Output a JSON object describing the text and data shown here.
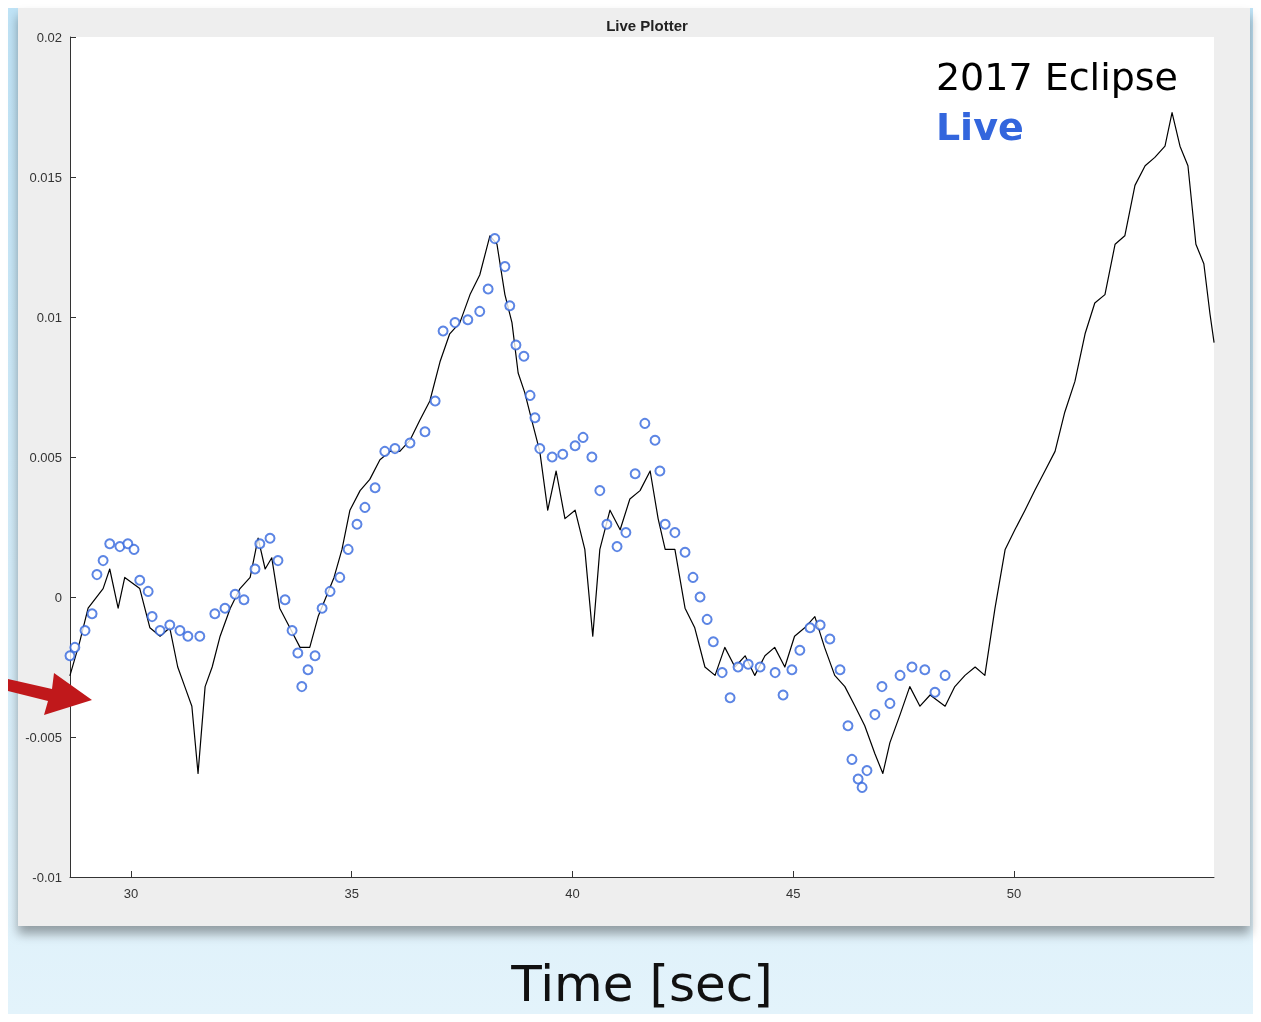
{
  "chart_data": {
    "type": "line",
    "title": "Live Plotter",
    "xlabel": "Time [sec]",
    "xlim": [
      28.62,
      54.53
    ],
    "xticks": [
      30,
      35,
      40,
      45,
      50
    ],
    "ylim": [
      -0.01,
      0.02
    ],
    "yticks": [
      -0.01,
      -0.005,
      0,
      0.005,
      0.01,
      0.015,
      0.02
    ],
    "grid": false,
    "legend": "top right",
    "series": [
      {
        "name": "2017 Eclipse",
        "type": "line",
        "marker": "none",
        "line_style": "solid",
        "color": "#000000",
        "x": [
          28.62,
          28.84,
          29.03,
          29.37,
          29.52,
          29.71,
          29.86,
          30.2,
          30.43,
          30.66,
          30.88,
          31.06,
          31.22,
          31.38,
          31.52,
          31.68,
          31.84,
          32.02,
          32.25,
          32.47,
          32.7,
          32.88,
          33.04,
          33.19,
          33.37,
          33.6,
          33.83,
          34.05,
          34.24,
          34.42,
          34.6,
          34.78,
          34.96,
          35.19,
          35.41,
          35.64,
          35.87,
          36.09,
          36.32,
          36.54,
          36.77,
          37.0,
          37.22,
          37.45,
          37.68,
          37.9,
          38.13,
          38.29,
          38.47,
          38.63,
          38.77,
          38.92,
          39.08,
          39.26,
          39.44,
          39.63,
          39.83,
          40.06,
          40.28,
          40.46,
          40.62,
          40.85,
          41.08,
          41.3,
          41.53,
          41.76,
          41.94,
          42.1,
          42.32,
          42.55,
          42.77,
          43.0,
          43.23,
          43.45,
          43.68,
          43.91,
          44.13,
          44.36,
          44.58,
          44.81,
          45.03,
          45.26,
          45.49,
          45.71,
          45.94,
          46.17,
          46.4,
          46.62,
          46.85,
          47.03,
          47.19,
          47.42,
          47.64,
          47.87,
          48.1,
          48.44,
          48.66,
          48.89,
          49.12,
          49.34,
          49.57,
          49.8,
          50.02,
          50.25,
          50.47,
          50.7,
          50.93,
          51.15,
          51.38,
          51.61,
          51.83,
          52.06,
          52.29,
          52.51,
          52.74,
          52.97,
          53.19,
          53.42,
          53.58,
          53.76,
          53.94,
          54.12,
          54.3,
          54.44,
          54.53
        ],
        "values": [
          -0.0028,
          -0.0016,
          -0.0004,
          0.0003,
          0.001,
          -0.0004,
          0.0007,
          0.0003,
          -0.0011,
          -0.0014,
          -0.0011,
          -0.0025,
          -0.0032,
          -0.0039,
          -0.0063,
          -0.0032,
          -0.0025,
          -0.0014,
          -0.0004,
          0.0003,
          0.0007,
          0.0021,
          0.001,
          0.0014,
          -0.0004,
          -0.0011,
          -0.0018,
          -0.0018,
          -0.0007,
          0.0,
          0.0007,
          0.0017,
          0.0031,
          0.0038,
          0.0042,
          0.0049,
          0.0052,
          0.0052,
          0.0056,
          0.0063,
          0.007,
          0.0084,
          0.0094,
          0.0098,
          0.0108,
          0.0115,
          0.0129,
          0.0126,
          0.0108,
          0.0098,
          0.008,
          0.0073,
          0.0063,
          0.0052,
          0.0031,
          0.0045,
          0.0028,
          0.0031,
          0.0017,
          -0.0014,
          0.0017,
          0.0031,
          0.0024,
          0.0035,
          0.0038,
          0.0045,
          0.0028,
          0.0017,
          0.0017,
          -0.0004,
          -0.0011,
          -0.0025,
          -0.0028,
          -0.0018,
          -0.0025,
          -0.0021,
          -0.0028,
          -0.0021,
          -0.0018,
          -0.0025,
          -0.0014,
          -0.0011,
          -0.0007,
          -0.0018,
          -0.0028,
          -0.0032,
          -0.0039,
          -0.0046,
          -0.0056,
          -0.0063,
          -0.0052,
          -0.0042,
          -0.0032,
          -0.0039,
          -0.0035,
          -0.0039,
          -0.0032,
          -0.0028,
          -0.0025,
          -0.0028,
          -0.0004,
          0.0017,
          0.0024,
          0.0031,
          0.0038,
          0.0045,
          0.0052,
          0.0066,
          0.0077,
          0.0094,
          0.0105,
          0.0108,
          0.0126,
          0.0129,
          0.0147,
          0.0154,
          0.0157,
          0.0161,
          0.0173,
          0.0161,
          0.0154,
          0.0126,
          0.0119,
          0.0101,
          0.0091
        ]
      },
      {
        "name": "Live",
        "type": "scatter",
        "marker": "circle",
        "color": "#3366dd",
        "x": [
          28.62,
          28.73,
          28.96,
          29.12,
          29.23,
          29.37,
          29.52,
          29.75,
          29.93,
          30.07,
          30.2,
          30.39,
          30.48,
          30.66,
          30.88,
          31.11,
          31.29,
          31.56,
          31.9,
          32.13,
          32.36,
          32.56,
          32.81,
          32.92,
          33.15,
          33.33,
          33.49,
          33.65,
          33.78,
          33.87,
          34.01,
          34.17,
          34.33,
          34.51,
          34.73,
          34.92,
          35.12,
          35.3,
          35.53,
          35.75,
          35.98,
          36.32,
          36.66,
          36.89,
          37.07,
          37.34,
          37.63,
          37.9,
          38.09,
          38.24,
          38.47,
          38.58,
          38.72,
          38.9,
          39.04,
          39.15,
          39.26,
          39.54,
          39.78,
          40.06,
          40.24,
          40.44,
          40.62,
          40.78,
          41.01,
          41.21,
          41.42,
          41.64,
          41.87,
          41.98,
          42.1,
          42.32,
          42.55,
          42.73,
          42.89,
          43.05,
          43.19,
          43.39,
          43.57,
          43.75,
          43.98,
          44.25,
          44.59,
          44.77,
          44.97,
          45.15,
          45.38,
          45.61,
          45.83,
          46.06,
          46.24,
          46.33,
          46.47,
          46.56,
          46.67,
          46.85,
          47.01,
          47.19,
          47.42,
          47.69,
          47.98,
          48.21,
          48.44
        ],
        "values": [
          -0.0021,
          -0.0018,
          -0.0012,
          -0.0006,
          0.0008,
          0.0013,
          0.0019,
          0.0018,
          0.0019,
          0.0017,
          0.0006,
          0.0002,
          -0.0007,
          -0.0012,
          -0.001,
          -0.0012,
          -0.0014,
          -0.0014,
          -0.0006,
          -0.0004,
          0.0001,
          -0.0001,
          0.001,
          0.0019,
          0.0021,
          0.0013,
          -0.0001,
          -0.0012,
          -0.002,
          -0.0032,
          -0.0026,
          -0.0021,
          -0.0004,
          0.0002,
          0.0007,
          0.0017,
          0.0026,
          0.0032,
          0.0039,
          0.0052,
          0.0053,
          0.0055,
          0.0059,
          0.007,
          0.0095,
          0.0098,
          0.0099,
          0.0102,
          0.011,
          0.0128,
          0.0118,
          0.0104,
          0.009,
          0.0086,
          0.0072,
          0.0064,
          0.0053,
          0.005,
          0.0051,
          0.0054,
          0.0057,
          0.005,
          0.0038,
          0.0026,
          0.0018,
          0.0023,
          0.0044,
          0.0062,
          0.0056,
          0.0045,
          0.0026,
          0.0023,
          0.0016,
          0.0007,
          0.0,
          -0.0008,
          -0.0016,
          -0.0027,
          -0.0036,
          -0.0025,
          -0.0024,
          -0.0025,
          -0.0027,
          -0.0035,
          -0.0026,
          -0.0019,
          -0.0011,
          -0.001,
          -0.0015,
          -0.0026,
          -0.0046,
          -0.0058,
          -0.0065,
          -0.0068,
          -0.0062,
          -0.0042,
          -0.0032,
          -0.0038,
          -0.0028,
          -0.0025,
          -0.0026,
          -0.0034,
          -0.0028
        ]
      }
    ]
  }
}
